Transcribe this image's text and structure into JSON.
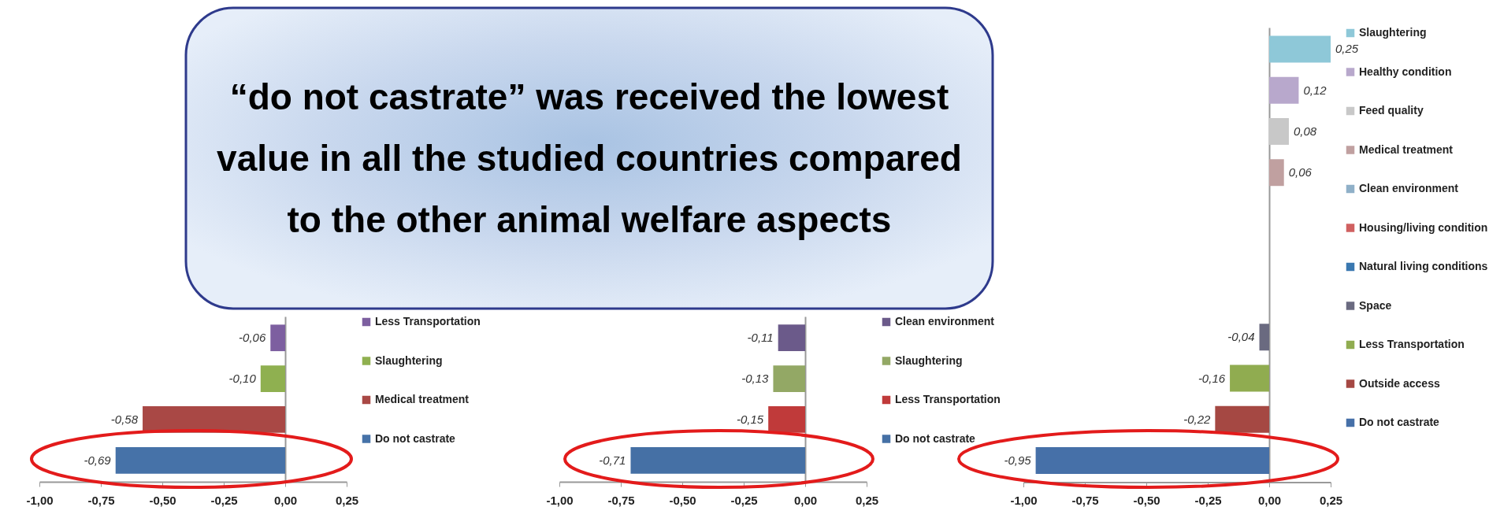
{
  "chart_data": [
    {
      "type": "bar",
      "orientation": "horizontal",
      "stacked": true,
      "annotations": [
        "“do not castrate” was received the lowest value in all the studied countries compared to the other animal welfare aspects"
      ],
      "categories": [
        null,
        null,
        null,
        null
      ],
      "series": [
        {
          "name": "Less Transportation",
          "color": "#7d5fa0",
          "values": [
            -0.06,
            null,
            null,
            null
          ],
          "value_labels": [
            "-0,06",
            null,
            null,
            null
          ]
        },
        {
          "name": "Slaughtering",
          "color": "#8fb050",
          "values": [
            null,
            -0.1,
            null,
            null
          ],
          "value_labels": [
            null,
            "-0,10",
            null,
            null
          ]
        },
        {
          "name": "Medical treatment",
          "color": "#a94845",
          "values": [
            null,
            null,
            -0.58,
            null
          ],
          "value_labels": [
            null,
            null,
            "-0,58",
            null
          ]
        },
        {
          "name": "Do not castrate",
          "color": "#4672a8",
          "values": [
            null,
            null,
            null,
            -0.69
          ],
          "value_labels": [
            null,
            null,
            null,
            "-0,69"
          ]
        }
      ],
      "xlim": [
        -1,
        0.25
      ],
      "xticks": [
        {
          "value": -1,
          "label": "-1,00"
        },
        {
          "value": -0.75,
          "label": "-0,75"
        },
        {
          "value": -0.5,
          "label": "-0,50"
        },
        {
          "value": -0.25,
          "label": "-0,25"
        },
        {
          "value": 0,
          "label": "0,00"
        },
        {
          "value": 0.25,
          "label": "0,25"
        }
      ],
      "legend": "right",
      "tick_labels": "x"
    },
    {
      "type": "bar",
      "orientation": "horizontal",
      "stacked": true,
      "categories": [
        null,
        null,
        null,
        null
      ],
      "series": [
        {
          "name": "Clean environment",
          "color": "#6b5a8a",
          "values": [
            -0.11,
            null,
            null,
            null
          ],
          "value_labels": [
            "-0,11",
            null,
            null,
            null
          ]
        },
        {
          "name": "Slaughtering",
          "color": "#93a865",
          "values": [
            null,
            -0.13,
            null,
            null
          ],
          "value_labels": [
            null,
            "-0,13",
            null,
            null
          ]
        },
        {
          "name": "Less Transportation",
          "color": "#c03a3a",
          "values": [
            null,
            null,
            -0.15,
            null
          ],
          "value_labels": [
            null,
            null,
            "-0,15",
            null
          ]
        },
        {
          "name": "Do not castrate",
          "color": "#4570a5",
          "values": [
            null,
            null,
            null,
            -0.71
          ],
          "value_labels": [
            null,
            null,
            null,
            "-0,71"
          ]
        }
      ],
      "xlim": [
        -1,
        0.25
      ],
      "xticks": [
        {
          "value": -1,
          "label": "-1,00"
        },
        {
          "value": -0.75,
          "label": "-0,75"
        },
        {
          "value": -0.5,
          "label": "-0,50"
        },
        {
          "value": -0.25,
          "label": "-0,25"
        },
        {
          "value": 0,
          "label": "0,00"
        },
        {
          "value": 0.25,
          "label": "0,25"
        }
      ],
      "legend": "right",
      "tick_labels": "x"
    },
    {
      "type": "bar",
      "orientation": "horizontal",
      "stacked": true,
      "categories": [
        null,
        null,
        null,
        null,
        null,
        null,
        null,
        null,
        null,
        null,
        null
      ],
      "series": [
        {
          "name": "Slaughtering",
          "color": "#8ec8d8",
          "values": [
            0.25,
            null,
            null,
            null,
            null,
            null,
            null,
            null,
            null,
            null,
            null
          ],
          "value_labels": [
            "0,25",
            null,
            null,
            null,
            null,
            null,
            null,
            null,
            null,
            null,
            null
          ]
        },
        {
          "name": "Healthy condition",
          "color": "#b8a8cc",
          "values": [
            null,
            0.12,
            null,
            null,
            null,
            null,
            null,
            null,
            null,
            null,
            null
          ],
          "value_labels": [
            null,
            "0,12",
            null,
            null,
            null,
            null,
            null,
            null,
            null,
            null,
            null
          ]
        },
        {
          "name": "Feed quality",
          "color": "#c8c8c8",
          "values": [
            null,
            null,
            0.08,
            null,
            null,
            null,
            null,
            null,
            null,
            null,
            null
          ],
          "value_labels": [
            null,
            null,
            "0,08",
            null,
            null,
            null,
            null,
            null,
            null,
            null,
            null
          ]
        },
        {
          "name": "Medical treatment",
          "color": "#c0a0a0",
          "values": [
            null,
            null,
            null,
            0.06,
            null,
            null,
            null,
            null,
            null,
            null,
            null
          ],
          "value_labels": [
            null,
            null,
            null,
            "0,06",
            null,
            null,
            null,
            null,
            null,
            null,
            null
          ]
        },
        {
          "name": "Clean environment",
          "color": "#8fb0c8",
          "values": [
            null,
            null,
            null,
            null,
            null,
            null,
            null,
            null,
            null,
            null,
            null
          ]
        },
        {
          "name": "Housing/living condition",
          "color": "#d06060",
          "values": [
            null,
            null,
            null,
            null,
            null,
            null,
            null,
            null,
            null,
            null,
            null
          ]
        },
        {
          "name": "Natural living conditions",
          "color": "#3a78b0",
          "values": [
            null,
            null,
            null,
            null,
            null,
            null,
            null,
            null,
            null,
            null,
            null
          ]
        },
        {
          "name": "Space",
          "color": "#6a6a80",
          "values": [
            null,
            null,
            null,
            null,
            null,
            null,
            null,
            -0.04,
            null,
            null,
            null
          ],
          "value_labels": [
            null,
            null,
            null,
            null,
            null,
            null,
            null,
            "-0,04",
            null,
            null,
            null
          ]
        },
        {
          "name": "Less Transportation",
          "color": "#90ac50",
          "values": [
            null,
            null,
            null,
            null,
            null,
            null,
            null,
            null,
            -0.16,
            null,
            null
          ],
          "value_labels": [
            null,
            null,
            null,
            null,
            null,
            null,
            null,
            null,
            "-0,16",
            null,
            null
          ]
        },
        {
          "name": "Outside access",
          "color": "#a54843",
          "values": [
            null,
            null,
            null,
            null,
            null,
            null,
            null,
            null,
            null,
            -0.22,
            null
          ],
          "value_labels": [
            null,
            null,
            null,
            null,
            null,
            null,
            null,
            null,
            null,
            "-0,22",
            null
          ]
        },
        {
          "name": "Do not castrate",
          "color": "#4670a8",
          "values": [
            null,
            null,
            null,
            null,
            null,
            null,
            null,
            null,
            null,
            null,
            -0.95
          ],
          "value_labels": [
            null,
            null,
            null,
            null,
            null,
            null,
            null,
            null,
            null,
            null,
            "-0,95"
          ]
        }
      ],
      "xlim": [
        -1,
        0.25
      ],
      "xticks": [
        {
          "value": -1,
          "label": "-1,00"
        },
        {
          "value": -0.75,
          "label": "-0,75"
        },
        {
          "value": -0.5,
          "label": "-0,50"
        },
        {
          "value": -0.25,
          "label": "-0,25"
        },
        {
          "value": 0,
          "label": "0,00"
        },
        {
          "value": 0.25,
          "label": "0,25"
        }
      ],
      "legend": "right",
      "tick_labels": "x"
    }
  ]
}
